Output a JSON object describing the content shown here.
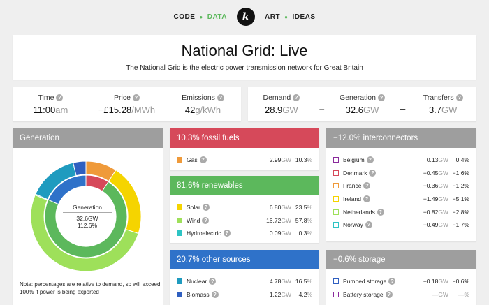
{
  "nav": {
    "left": [
      "CODE",
      "DATA"
    ],
    "right": [
      "ART",
      "IDEAS"
    ],
    "active": "DATA",
    "logo": "k"
  },
  "header": {
    "title": "National Grid: Live",
    "subtitle": "The National Grid is the electric power transmission network for Great Britain"
  },
  "stats_left": [
    {
      "label": "Time",
      "value": "11:00",
      "unit": "am"
    },
    {
      "label": "Price",
      "value": "−£15.28",
      "unit": "/MWh"
    },
    {
      "label": "Emissions",
      "value": "42",
      "unit": "g/kWh"
    }
  ],
  "stats_right": {
    "demand": {
      "label": "Demand",
      "value": "28.9",
      "unit": "GW"
    },
    "eq": "=",
    "generation": {
      "label": "Generation",
      "value": "32.6",
      "unit": "GW"
    },
    "minus": "–",
    "transfers": {
      "label": "Transfers",
      "value": "3.7",
      "unit": "GW"
    }
  },
  "generation_panel": {
    "title": "Generation",
    "center_label": "Generation",
    "center_gw": "32.6GW",
    "center_pct": "112.6%",
    "note": "Note: percentages are relative to demand, so will exceed 100% if power is being exported"
  },
  "fossil": {
    "title": "10.3% fossil fuels",
    "rows": [
      {
        "name": "Gas",
        "gw": "2.99",
        "pct": "10.3",
        "color": "#ef9a3a"
      }
    ]
  },
  "renewables": {
    "title": "81.6% renewables",
    "rows": [
      {
        "name": "Solar",
        "gw": "6.80",
        "pct": "23.5",
        "color": "#f5d400"
      },
      {
        "name": "Wind",
        "gw": "16.72",
        "pct": "57.8",
        "color": "#9ee05a"
      },
      {
        "name": "Hydroelectric",
        "gw": "0.09",
        "pct": "0.3",
        "color": "#2ec4c4"
      }
    ]
  },
  "other": {
    "title": "20.7% other sources",
    "rows": [
      {
        "name": "Nuclear",
        "gw": "4.78",
        "pct": "16.5",
        "color": "#1f9bbf"
      },
      {
        "name": "Biomass",
        "gw": "1.22",
        "pct": "4.2",
        "color": "#2f5fc0"
      }
    ]
  },
  "interconnectors": {
    "title": "−12.0% interconnectors",
    "rows": [
      {
        "name": "Belgium",
        "gw": "0.13",
        "pct": "0.4%",
        "color": "#8a2a9c"
      },
      {
        "name": "Denmark",
        "gw": "−0.45",
        "pct": "−1.6%",
        "color": "#d6495a"
      },
      {
        "name": "France",
        "gw": "−0.36",
        "pct": "−1.2%",
        "color": "#ef9a3a"
      },
      {
        "name": "Ireland",
        "gw": "−1.49",
        "pct": "−5.1%",
        "color": "#f5d400"
      },
      {
        "name": "Netherlands",
        "gw": "−0.82",
        "pct": "−2.8%",
        "color": "#9ee05a"
      },
      {
        "name": "Norway",
        "gw": "−0.49",
        "pct": "−1.7%",
        "color": "#2ec4c4"
      }
    ]
  },
  "storage": {
    "title": "−0.6% storage",
    "rows": [
      {
        "name": "Pumped storage",
        "gw": "−0.18",
        "pct": "−0.6%",
        "color": "#2f5fc0"
      },
      {
        "name": "Battery storage",
        "gw": "—",
        "pct": "—",
        "color": "#8a2a9c"
      }
    ]
  },
  "units": {
    "gw": "GW",
    "pct": "%"
  },
  "donut": {
    "outer": [
      {
        "name": "Gas",
        "value": 10.3,
        "color": "#ef9a3a"
      },
      {
        "name": "Solar",
        "value": 23.5,
        "color": "#f5d400"
      },
      {
        "name": "Wind",
        "value": 57.8,
        "color": "#9ee05a"
      },
      {
        "name": "Hydroelectric",
        "value": 0.3,
        "color": "#2ec4c4"
      },
      {
        "name": "Nuclear",
        "value": 16.5,
        "color": "#1f9bbf"
      },
      {
        "name": "Biomass",
        "value": 4.2,
        "color": "#2f5fc0"
      }
    ],
    "inner": [
      {
        "name": "Fossil fuels",
        "value": 10.3,
        "color": "#d6495a"
      },
      {
        "name": "Renewables",
        "value": 81.6,
        "color": "#5cb85c"
      },
      {
        "name": "Other sources",
        "value": 20.7,
        "color": "#2f72c9"
      }
    ]
  }
}
